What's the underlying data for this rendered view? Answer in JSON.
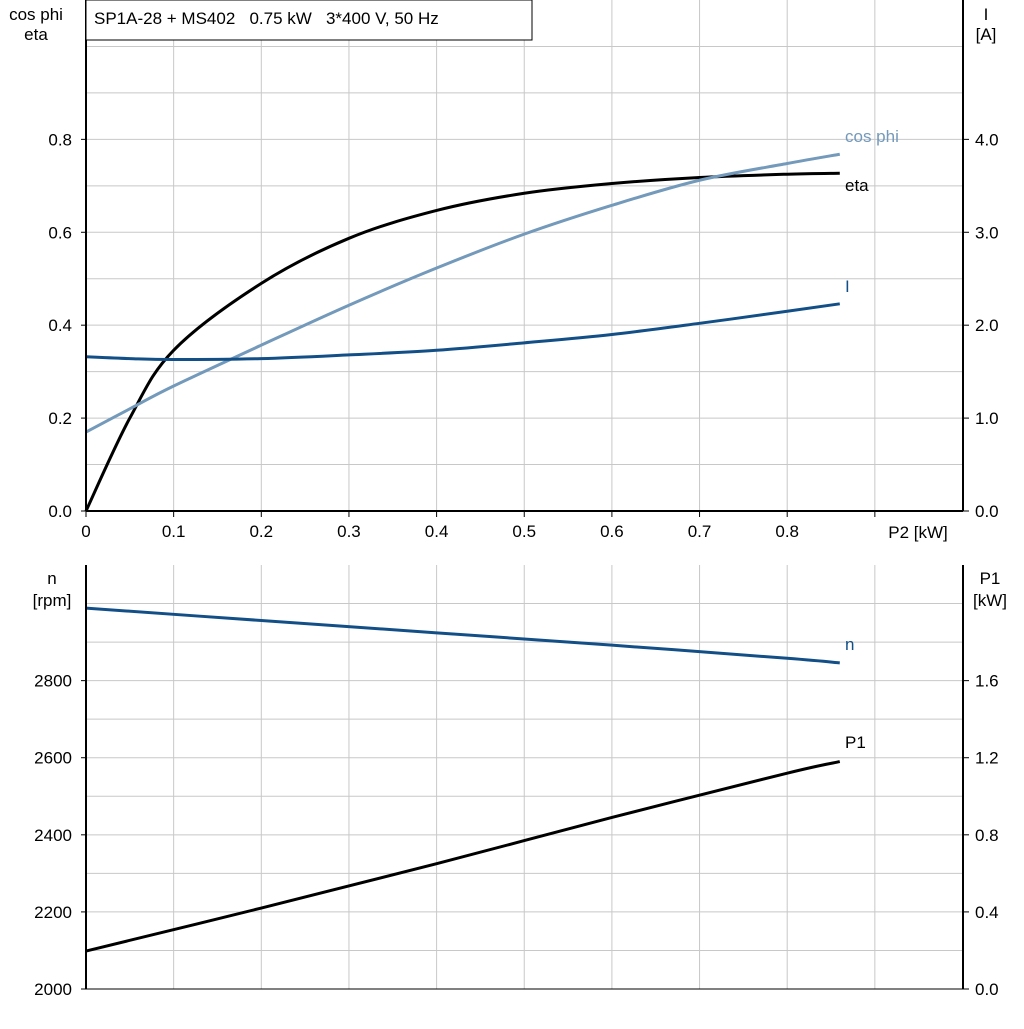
{
  "title": "SP1A-28 + MS402   0.75 kW   3*400 V, 50 Hz",
  "colors": {
    "eta": "#000000",
    "cos_phi": "#7399bb",
    "I": "#134f87",
    "n": "#134f87",
    "P1": "#000000",
    "grid": "#c8c8c8"
  },
  "chart_data": [
    {
      "type": "line",
      "xlabel": "P2 [kW]",
      "ylabel_left": [
        "cos phi",
        "eta"
      ],
      "ylabel_right": [
        "I",
        "[A]"
      ],
      "xlim": [
        0,
        1.0
      ],
      "ylim_left": [
        0,
        1.1
      ],
      "ylim_right": [
        0,
        5.5
      ],
      "x_ticks": [
        "0",
        "0.1",
        "0.2",
        "0.3",
        "0.4",
        "0.5",
        "0.6",
        "0.7",
        "0.8"
      ],
      "left_ticks": [
        "0.0",
        "0.2",
        "0.4",
        "0.6",
        "0.8"
      ],
      "right_ticks": [
        "0.0",
        "1.0",
        "2.0",
        "3.0",
        "4.0"
      ],
      "grid": true,
      "x": [
        0,
        0.05,
        0.1,
        0.2,
        0.3,
        0.4,
        0.5,
        0.6,
        0.7,
        0.8,
        0.86
      ],
      "series": [
        {
          "name": "eta",
          "axis": "left",
          "values": [
            0,
            0.2,
            0.346,
            0.49,
            0.587,
            0.647,
            0.684,
            0.705,
            0.718,
            0.725,
            0.727
          ]
        },
        {
          "name": "cos phi",
          "axis": "left",
          "values": [
            0.17,
            0.22,
            0.269,
            0.357,
            0.443,
            0.523,
            0.596,
            0.658,
            0.712,
            0.748,
            0.768
          ]
        },
        {
          "name": "I",
          "axis": "right",
          "values": [
            1.66,
            1.64,
            1.63,
            1.64,
            1.68,
            1.73,
            1.81,
            1.9,
            2.02,
            2.15,
            2.23
          ]
        }
      ]
    },
    {
      "type": "line",
      "xlim": [
        0,
        1.0
      ],
      "ylabel_left": [
        "n",
        "[rpm]"
      ],
      "ylabel_right": [
        "P1",
        "[kW]"
      ],
      "ylim_left": [
        2000,
        3100
      ],
      "ylim_right": [
        0,
        2.2
      ],
      "left_ticks": [
        "2000",
        "2200",
        "2400",
        "2600",
        "2800"
      ],
      "right_ticks": [
        "0.0",
        "0.4",
        "0.8",
        "1.2",
        "1.6"
      ],
      "grid": true,
      "x": [
        0,
        0.2,
        0.4,
        0.6,
        0.8,
        0.86
      ],
      "series": [
        {
          "name": "n",
          "axis": "left",
          "values": [
            2988,
            2956,
            2924,
            2892,
            2858,
            2846
          ]
        },
        {
          "name": "P1",
          "axis": "right",
          "values": [
            0.197,
            0.42,
            0.65,
            0.89,
            1.12,
            1.18
          ]
        }
      ]
    }
  ]
}
